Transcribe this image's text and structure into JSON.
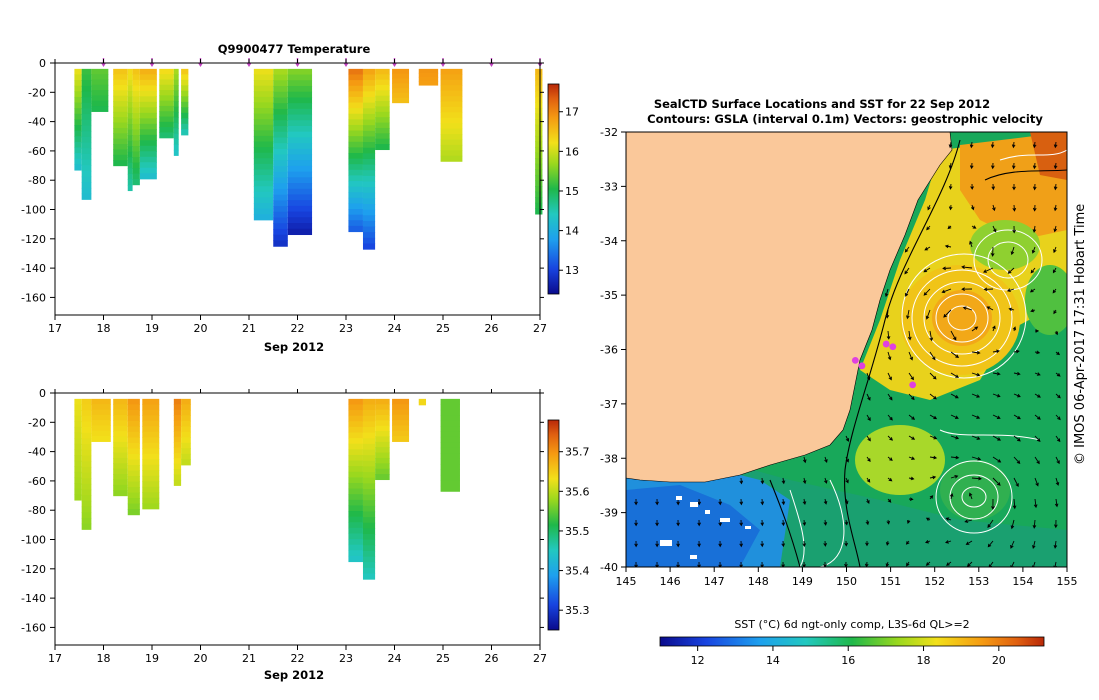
{
  "chart_data": [
    {
      "type": "heatmap",
      "title": "Q9900477  Temperature",
      "xlabel": "Sep 2012",
      "ylabel": "",
      "x_ticks": [
        "17",
        "18",
        "19",
        "20",
        "21",
        "22",
        "23",
        "24",
        "25",
        "26",
        "27"
      ],
      "y_ticks": [
        "0",
        "-20",
        "-40",
        "-60",
        "-80",
        "-100",
        "-120",
        "-140",
        "-160"
      ],
      "xlim": [
        17,
        27
      ],
      "ylim": [
        -172,
        0
      ],
      "colorbar": {
        "min": 12.4,
        "max": 17.7,
        "ticks": [
          13,
          14,
          15,
          16,
          17
        ],
        "tick_labels": [
          "13",
          "14",
          "15",
          "16",
          "17"
        ]
      },
      "profile_markers_day": [
        18.0,
        19.0,
        20.0,
        21.0,
        22.0,
        23.0,
        24.0,
        25.0,
        26.0,
        27.0
      ],
      "profiles": [
        {
          "x0": 17.4,
          "x1": 17.55,
          "depth": -73,
          "top": 16.2,
          "bottom": 14.2
        },
        {
          "x0": 17.55,
          "x1": 17.75,
          "depth": -93,
          "top": 15.2,
          "bottom": 14.2
        },
        {
          "x0": 17.75,
          "x1": 18.1,
          "depth": -33,
          "top": 15.4,
          "bottom": 15.0
        },
        {
          "x0": 18.2,
          "x1": 18.5,
          "depth": -70,
          "top": 16.5,
          "bottom": 15.0
        },
        {
          "x0": 18.5,
          "x1": 18.6,
          "depth": -87,
          "top": 16.3,
          "bottom": 14.5
        },
        {
          "x0": 18.6,
          "x1": 18.75,
          "depth": -83,
          "top": 16.5,
          "bottom": 14.8
        },
        {
          "x0": 18.75,
          "x1": 19.1,
          "depth": -79,
          "top": 16.7,
          "bottom": 14.2
        },
        {
          "x0": 19.15,
          "x1": 19.45,
          "depth": -51,
          "top": 16.3,
          "bottom": 14.8
        },
        {
          "x0": 19.45,
          "x1": 19.55,
          "depth": -63,
          "top": 15.8,
          "bottom": 14.3
        },
        {
          "x0": 19.6,
          "x1": 19.75,
          "depth": -49,
          "top": 16.5,
          "bottom": 14.4
        },
        {
          "x0": 21.1,
          "x1": 21.5,
          "depth": -107,
          "top": 16.2,
          "bottom": 14.0
        },
        {
          "x0": 21.5,
          "x1": 21.8,
          "depth": -125,
          "top": 15.8,
          "bottom": 12.8
        },
        {
          "x0": 21.8,
          "x1": 22.3,
          "depth": -117,
          "top": 15.6,
          "bottom": 12.6
        },
        {
          "x0": 23.05,
          "x1": 23.35,
          "depth": -115,
          "top": 17.2,
          "bottom": 13.2
        },
        {
          "x0": 23.35,
          "x1": 23.6,
          "depth": -127,
          "top": 16.8,
          "bottom": 13.0
        },
        {
          "x0": 23.6,
          "x1": 23.9,
          "depth": -59,
          "top": 16.6,
          "bottom": 15.0
        },
        {
          "x0": 23.95,
          "x1": 24.3,
          "depth": -27,
          "top": 16.9,
          "bottom": 16.5
        },
        {
          "x0": 24.5,
          "x1": 24.9,
          "depth": -15,
          "top": 16.9,
          "bottom": 16.8
        },
        {
          "x0": 24.95,
          "x1": 25.4,
          "depth": -67,
          "top": 16.8,
          "bottom": 15.8
        },
        {
          "x0": 26.9,
          "x1": 27.05,
          "depth": -103,
          "top": 16.6,
          "bottom": 15.0
        }
      ]
    },
    {
      "type": "heatmap",
      "title": "",
      "xlabel": "Sep 2012",
      "ylabel": "",
      "x_ticks": [
        "17",
        "18",
        "19",
        "20",
        "21",
        "22",
        "23",
        "24",
        "25",
        "26",
        "27"
      ],
      "y_ticks": [
        "0",
        "-20",
        "-40",
        "-60",
        "-80",
        "-100",
        "-120",
        "-140",
        "-160"
      ],
      "xlim": [
        17,
        27
      ],
      "ylim": [
        -172,
        0
      ],
      "colorbar": {
        "min": 35.25,
        "max": 35.78,
        "ticks": [
          35.3,
          35.4,
          35.5,
          35.6,
          35.7
        ],
        "tick_labels": [
          "35.3",
          "35.4",
          "35.5",
          "35.6",
          "35.7"
        ]
      },
      "profiles": [
        {
          "x0": 17.4,
          "x1": 17.55,
          "depth": -73,
          "top": 35.63,
          "bottom": 35.58
        },
        {
          "x0": 17.55,
          "x1": 17.75,
          "depth": -93,
          "top": 35.65,
          "bottom": 35.57
        },
        {
          "x0": 17.75,
          "x1": 18.15,
          "depth": -33,
          "top": 35.67,
          "bottom": 35.63
        },
        {
          "x0": 18.2,
          "x1": 18.5,
          "depth": -70,
          "top": 35.67,
          "bottom": 35.57
        },
        {
          "x0": 18.5,
          "x1": 18.75,
          "depth": -83,
          "top": 35.7,
          "bottom": 35.56
        },
        {
          "x0": 18.8,
          "x1": 19.15,
          "depth": -79,
          "top": 35.69,
          "bottom": 35.58
        },
        {
          "x0": 19.45,
          "x1": 19.6,
          "depth": -63,
          "top": 35.72,
          "bottom": 35.6
        },
        {
          "x0": 19.6,
          "x1": 19.8,
          "depth": -49,
          "top": 35.68,
          "bottom": 35.6
        },
        {
          "x0": 23.05,
          "x1": 23.35,
          "depth": -115,
          "top": 35.7,
          "bottom": 35.44
        },
        {
          "x0": 23.35,
          "x1": 23.6,
          "depth": -127,
          "top": 35.68,
          "bottom": 35.45
        },
        {
          "x0": 23.6,
          "x1": 23.9,
          "depth": -59,
          "top": 35.68,
          "bottom": 35.55
        },
        {
          "x0": 23.95,
          "x1": 24.3,
          "depth": -33,
          "top": 35.7,
          "bottom": 35.65
        },
        {
          "x0": 24.5,
          "x1": 24.65,
          "depth": -8,
          "top": 35.64,
          "bottom": 35.64
        },
        {
          "x0": 24.95,
          "x1": 25.35,
          "depth": -67,
          "top": 35.55,
          "bottom": 35.55
        }
      ]
    },
    {
      "type": "heatmap",
      "title": "SealCTD Surface Locations and SST for 22 Sep 2012",
      "subtitle": "Contours: GSLA (interval 0.1m) Vectors: geostrophic velocity",
      "xlabel": "",
      "ylabel": "",
      "x_ticks": [
        "145",
        "146",
        "147",
        "148",
        "149",
        "150",
        "151",
        "152",
        "153",
        "154",
        "155"
      ],
      "y_ticks": [
        "-32",
        "-33",
        "-34",
        "-35",
        "-36",
        "-37",
        "-38",
        "-39",
        "-40"
      ],
      "xlim": [
        145,
        155
      ],
      "ylim": [
        -40,
        -32
      ],
      "colorbar": {
        "min": 11.0,
        "max": 21.2,
        "ticks": [
          12,
          14,
          16,
          18,
          20
        ],
        "tick_labels": [
          "12",
          "14",
          "16",
          "18",
          "20"
        ],
        "label": "SST (°C) 6d ngt-only comp, L3S-6d QL>=2"
      },
      "seal_locations": [
        {
          "lon": 150.2,
          "lat": -36.2
        },
        {
          "lon": 150.35,
          "lat": -36.3
        },
        {
          "lon": 151.5,
          "lat": -36.65
        },
        {
          "lon": 150.9,
          "lat": -35.9
        },
        {
          "lon": 151.05,
          "lat": -35.95
        }
      ],
      "eddies": [
        {
          "lon": 152.6,
          "lat": -35.5,
          "type": "warm-core"
        },
        {
          "lon": 153.0,
          "lat": -38.7,
          "type": "contour"
        },
        {
          "lon": 153.1,
          "lat": -34.2,
          "type": "contour"
        }
      ],
      "side_label": "© IMOS 06-Apr-2017 17:31 Hobart Time"
    }
  ]
}
